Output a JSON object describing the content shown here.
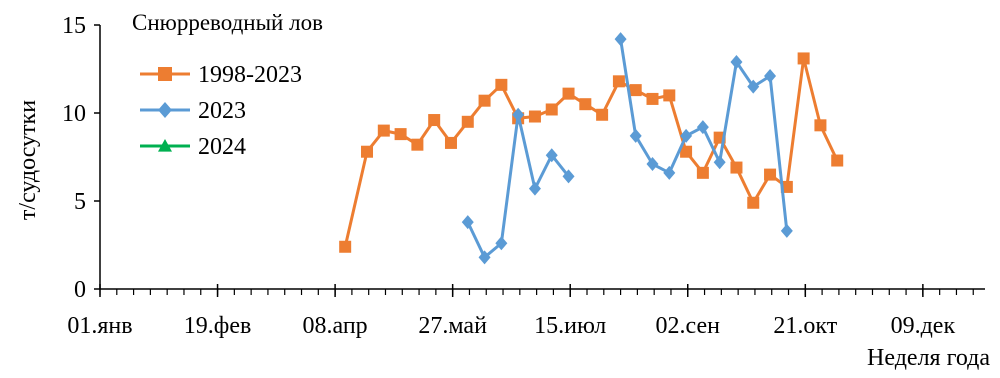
{
  "chart_data": {
    "type": "line",
    "title": "Снюрреводный лов",
    "xlabel": "Неделя года",
    "ylabel": "т/судосутки",
    "ylim": [
      0,
      15
    ],
    "yticks": [
      0,
      5,
      10,
      15
    ],
    "xlim": [
      0,
      52.7
    ],
    "xticks": [
      {
        "label": "01.янв",
        "week": 0
      },
      {
        "label": "19.фев",
        "week": 7
      },
      {
        "label": "08.апр",
        "week": 14
      },
      {
        "label": "27.май",
        "week": 21
      },
      {
        "label": "15.июл",
        "week": 28
      },
      {
        "label": "02.сен",
        "week": 35
      },
      {
        "label": "21.окт",
        "week": 42
      },
      {
        "label": "09.дек",
        "week": 49
      }
    ],
    "legend_position": "top-left",
    "grid": false,
    "series": [
      {
        "name": "1998-2023",
        "color": "#ED7D31",
        "marker": "square",
        "points": [
          [
            14.6,
            2.4
          ],
          [
            15.9,
            7.8
          ],
          [
            16.9,
            9.0
          ],
          [
            17.9,
            8.8
          ],
          [
            18.9,
            8.2
          ],
          [
            19.9,
            9.6
          ],
          [
            20.9,
            8.3
          ],
          [
            21.9,
            9.5
          ],
          [
            22.9,
            10.7
          ],
          [
            23.9,
            11.6
          ],
          [
            24.9,
            9.7
          ],
          [
            25.9,
            9.8
          ],
          [
            26.9,
            10.2
          ],
          [
            27.9,
            11.1
          ],
          [
            28.9,
            10.5
          ],
          [
            29.9,
            9.9
          ],
          [
            30.9,
            11.8
          ],
          [
            31.9,
            11.3
          ],
          [
            32.9,
            10.8
          ],
          [
            33.9,
            11.0
          ],
          [
            34.9,
            7.8
          ],
          [
            35.9,
            6.6
          ],
          [
            36.9,
            8.6
          ],
          [
            37.9,
            6.9
          ],
          [
            38.9,
            4.9
          ],
          [
            39.9,
            6.5
          ],
          [
            40.9,
            5.8
          ],
          [
            41.9,
            13.1
          ],
          [
            42.9,
            9.3
          ],
          [
            43.9,
            7.3
          ]
        ]
      },
      {
        "name": "2023",
        "color": "#5B9BD5",
        "marker": "diamond",
        "points": [
          [
            21.9,
            3.8
          ],
          [
            22.9,
            1.8
          ],
          [
            23.9,
            2.6
          ],
          [
            24.9,
            9.9
          ],
          [
            25.9,
            5.7
          ],
          [
            26.9,
            7.6
          ],
          [
            27.9,
            6.4
          ],
          [
            null,
            null
          ],
          [
            31.0,
            14.2
          ],
          [
            31.9,
            8.7
          ],
          [
            32.9,
            7.1
          ],
          [
            33.9,
            6.6
          ],
          [
            34.9,
            8.7
          ],
          [
            35.9,
            9.2
          ],
          [
            36.9,
            7.2
          ],
          [
            37.9,
            12.9
          ],
          [
            38.9,
            11.5
          ],
          [
            39.9,
            12.1
          ],
          [
            40.9,
            3.3
          ]
        ]
      },
      {
        "name": "2024",
        "color": "#00B050",
        "marker": "triangle",
        "points": []
      }
    ]
  }
}
